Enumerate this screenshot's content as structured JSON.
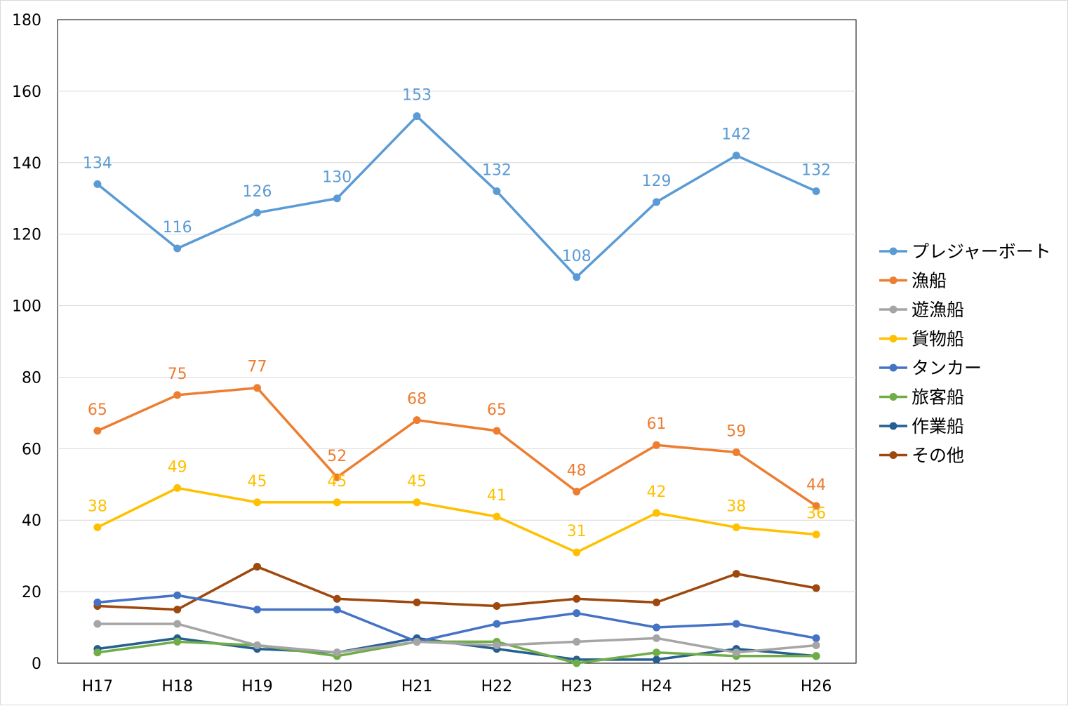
{
  "chart_data": {
    "type": "line",
    "title": "",
    "xlabel": "",
    "ylabel": "",
    "categories": [
      "H17",
      "H18",
      "H19",
      "H20",
      "H21",
      "H22",
      "H23",
      "H24",
      "H25",
      "H26"
    ],
    "ylim": [
      0,
      180
    ],
    "yticks": [
      0,
      20,
      40,
      60,
      80,
      100,
      120,
      140,
      160,
      180
    ],
    "grid": true,
    "legend_position": "right",
    "series": [
      {
        "name": "プレジャーボート",
        "color": "#5b9bd5",
        "values": [
          134,
          116,
          126,
          130,
          153,
          132,
          108,
          129,
          142,
          132
        ],
        "data_labels": true
      },
      {
        "name": "漁船",
        "color": "#ed7d31",
        "values": [
          65,
          75,
          77,
          52,
          68,
          65,
          48,
          61,
          59,
          44
        ],
        "data_labels": true
      },
      {
        "name": "遊漁船",
        "color": "#a5a5a5",
        "values": [
          11,
          11,
          5,
          3,
          6,
          5,
          6,
          7,
          3,
          5
        ],
        "data_labels": false
      },
      {
        "name": "貨物船",
        "color": "#ffc000",
        "values": [
          38,
          49,
          45,
          45,
          45,
          41,
          31,
          42,
          38,
          36
        ],
        "data_labels": true
      },
      {
        "name": "タンカー",
        "color": "#4472c4",
        "values": [
          17,
          19,
          15,
          15,
          6,
          11,
          14,
          10,
          11,
          7
        ],
        "data_labels": false
      },
      {
        "name": "旅客船",
        "color": "#70ad47",
        "values": [
          3,
          6,
          5,
          2,
          6,
          6,
          0,
          3,
          2,
          2
        ],
        "data_labels": false
      },
      {
        "name": "作業船",
        "color": "#255e91",
        "values": [
          4,
          7,
          4,
          3,
          7,
          4,
          1,
          1,
          4,
          2
        ],
        "data_labels": false
      },
      {
        "name": "その他",
        "color": "#9e480e",
        "values": [
          16,
          15,
          27,
          18,
          17,
          16,
          18,
          17,
          25,
          21
        ],
        "data_labels": false
      }
    ]
  }
}
